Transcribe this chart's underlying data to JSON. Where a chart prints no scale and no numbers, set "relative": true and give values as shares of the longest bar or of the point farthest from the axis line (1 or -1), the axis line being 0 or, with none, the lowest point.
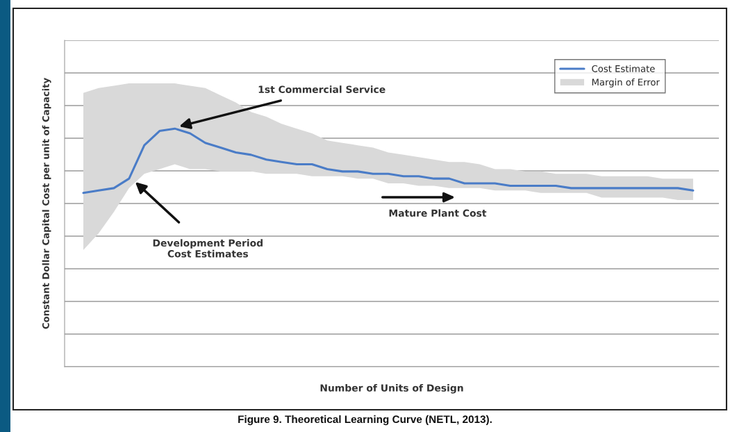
{
  "chart_data": {
    "type": "line",
    "relative": true,
    "xlabel": "Number of Units of Design",
    "ylabel": "Constant Dollar Capital Cost per unit of Capacity",
    "categories": [
      null,
      null,
      null,
      null,
      null,
      null,
      null,
      null,
      null,
      null,
      null,
      null,
      null,
      null,
      null,
      null,
      null,
      null,
      null,
      null,
      null,
      null,
      null,
      null,
      null,
      null,
      null,
      null,
      null,
      null,
      null,
      null,
      null,
      null,
      null,
      null,
      null,
      null,
      null,
      null,
      null
    ],
    "series": [
      {
        "name": "Cost Estimate",
        "color": "#4a7cc7",
        "values": [
          0.73,
          0.74,
          0.75,
          0.79,
          0.93,
          0.99,
          1.0,
          0.98,
          0.94,
          0.92,
          0.9,
          0.89,
          0.87,
          0.86,
          0.85,
          0.85,
          0.83,
          0.82,
          0.82,
          0.81,
          0.81,
          0.8,
          0.8,
          0.79,
          0.79,
          0.77,
          0.77,
          0.77,
          0.76,
          0.76,
          0.76,
          0.76,
          0.75,
          0.75,
          0.75,
          0.75,
          0.75,
          0.75,
          0.75,
          0.75,
          0.74
        ],
        "upper": [
          1.15,
          1.17,
          1.18,
          1.19,
          1.19,
          1.19,
          1.19,
          1.18,
          1.17,
          1.14,
          1.11,
          1.07,
          1.05,
          1.02,
          1.0,
          0.98,
          0.95,
          0.94,
          0.93,
          0.92,
          0.9,
          0.89,
          0.88,
          0.87,
          0.86,
          0.86,
          0.85,
          0.83,
          0.83,
          0.82,
          0.82,
          0.81,
          0.81,
          0.81,
          0.8,
          0.8,
          0.8,
          0.8,
          0.79,
          0.79,
          0.79
        ],
        "lower": [
          0.49,
          0.56,
          0.65,
          0.75,
          0.81,
          0.83,
          0.85,
          0.83,
          0.83,
          0.82,
          0.82,
          0.82,
          0.81,
          0.81,
          0.81,
          0.8,
          0.8,
          0.8,
          0.79,
          0.79,
          0.77,
          0.77,
          0.76,
          0.76,
          0.75,
          0.75,
          0.75,
          0.74,
          0.74,
          0.74,
          0.73,
          0.73,
          0.73,
          0.73,
          0.71,
          0.71,
          0.71,
          0.71,
          0.71,
          0.7,
          0.7
        ]
      }
    ],
    "annotations": [
      "1st Commercial Service",
      "Development Period\nCost Estimates",
      "Mature Plant Cost",
      "Figure 9. Theoretical Learning Curve (NETL, 2013).",
      "Margin of Error"
    ],
    "grid": "y",
    "legend": "top right",
    "marker": "none",
    "line_style": "solid"
  }
}
